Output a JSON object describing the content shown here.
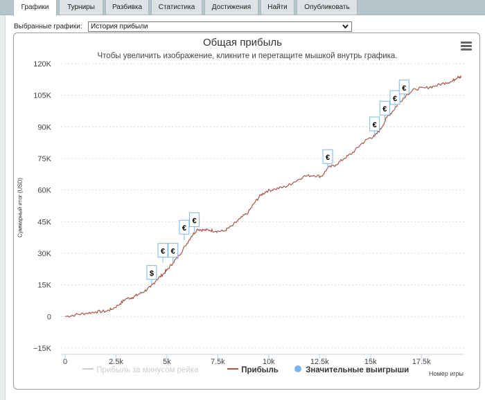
{
  "tabs": [
    {
      "label": "Графики",
      "active": true
    },
    {
      "label": "Турниры",
      "active": false
    },
    {
      "label": "Разбивка",
      "active": false
    },
    {
      "label": "Статистика",
      "active": false
    },
    {
      "label": "Достижения",
      "active": false
    },
    {
      "label": "Найти",
      "active": false
    },
    {
      "label": "Опубликовать",
      "active": false
    }
  ],
  "selector": {
    "label": "Выбранные графики:",
    "value": "История прибыли"
  },
  "menu_icon": "hamburger-menu-icon",
  "legend": {
    "items": [
      {
        "label": "Прибыль за минусом рейка",
        "color": "#cccccc",
        "symbol": "line",
        "hidden": true
      },
      {
        "label": "Прибыль",
        "color": "#a8564a",
        "symbol": "line",
        "hidden": false
      },
      {
        "label": "Значительные выигрыши",
        "color": "#7cb5ec",
        "symbol": "circle",
        "hidden": false
      }
    ]
  },
  "chart_data": {
    "type": "line",
    "title": "Общая прибыль",
    "subtitle": "Чтобы увеличить изображение, кликните и перетащите мышкой внутрь графика.",
    "xlabel": "Номер игры",
    "ylabel": "Суммарный итог (USD)",
    "xlim": [
      0,
      19500
    ],
    "ylim": [
      -15000,
      120000
    ],
    "grid": true,
    "legend_position": "bottom",
    "x_ticks": [
      "0",
      "2.5k",
      "5k",
      "7.5k",
      "10k",
      "12.5k",
      "15k",
      "17.5k"
    ],
    "x_tick_values": [
      0,
      2500,
      5000,
      7500,
      10000,
      12500,
      15000,
      17500
    ],
    "y_ticks": [
      "−15K",
      "0",
      "15K",
      "30K",
      "45K",
      "60K",
      "75K",
      "90K",
      "105K",
      "120K"
    ],
    "y_tick_values": [
      -15000,
      0,
      15000,
      30000,
      45000,
      60000,
      75000,
      90000,
      105000,
      120000
    ],
    "series": [
      {
        "name": "Прибыль",
        "color": "#a8564a",
        "points": [
          [
            0,
            0
          ],
          [
            500,
            800
          ],
          [
            1000,
            1500
          ],
          [
            1500,
            2200
          ],
          [
            2000,
            2500
          ],
          [
            2300,
            3500
          ],
          [
            2700,
            6000
          ],
          [
            3000,
            8500
          ],
          [
            3300,
            9000
          ],
          [
            3600,
            10500
          ],
          [
            3900,
            12000
          ],
          [
            4200,
            14000
          ],
          [
            4500,
            17500
          ],
          [
            4800,
            20000
          ],
          [
            5000,
            22000
          ],
          [
            5300,
            25500
          ],
          [
            5600,
            29000
          ],
          [
            5900,
            33500
          ],
          [
            6200,
            38000
          ],
          [
            6500,
            41500
          ],
          [
            6800,
            41000
          ],
          [
            7100,
            41000
          ],
          [
            7400,
            40500
          ],
          [
            7800,
            40500
          ],
          [
            8200,
            43000
          ],
          [
            8600,
            46500
          ],
          [
            9000,
            49500
          ],
          [
            9300,
            54000
          ],
          [
            9600,
            57500
          ],
          [
            9900,
            59500
          ],
          [
            10300,
            60500
          ],
          [
            10800,
            61500
          ],
          [
            11200,
            63500
          ],
          [
            11700,
            66500
          ],
          [
            12200,
            67000
          ],
          [
            12600,
            66500
          ],
          [
            12900,
            70500
          ],
          [
            13300,
            72000
          ],
          [
            13700,
            75000
          ],
          [
            14100,
            77500
          ],
          [
            14500,
            81500
          ],
          [
            14900,
            84500
          ],
          [
            15200,
            85500
          ],
          [
            15500,
            89000
          ],
          [
            15800,
            94500
          ],
          [
            16100,
            97500
          ],
          [
            16400,
            101500
          ],
          [
            16800,
            105500
          ],
          [
            17200,
            108000
          ],
          [
            17700,
            108500
          ],
          [
            18200,
            109500
          ],
          [
            18700,
            111000
          ],
          [
            19000,
            111500
          ],
          [
            19300,
            114000
          ],
          [
            19450,
            113500
          ]
        ]
      },
      {
        "name": "Значительные выигрыши",
        "type": "flags",
        "color": "#7cb5ec",
        "points": [
          {
            "x": 4250,
            "y": 15000,
            "symbol": "$"
          },
          {
            "x": 4800,
            "y": 25500,
            "symbol": "€"
          },
          {
            "x": 5300,
            "y": 25500,
            "symbol": "€"
          },
          {
            "x": 5850,
            "y": 36500,
            "symbol": "€"
          },
          {
            "x": 6350,
            "y": 40000,
            "symbol": "€"
          },
          {
            "x": 12900,
            "y": 70000,
            "symbol": "€"
          },
          {
            "x": 15200,
            "y": 85500,
            "symbol": "€"
          },
          {
            "x": 15700,
            "y": 93000,
            "symbol": "€"
          },
          {
            "x": 16200,
            "y": 98000,
            "symbol": "€"
          },
          {
            "x": 16650,
            "y": 103000,
            "symbol": "€"
          }
        ]
      }
    ]
  }
}
